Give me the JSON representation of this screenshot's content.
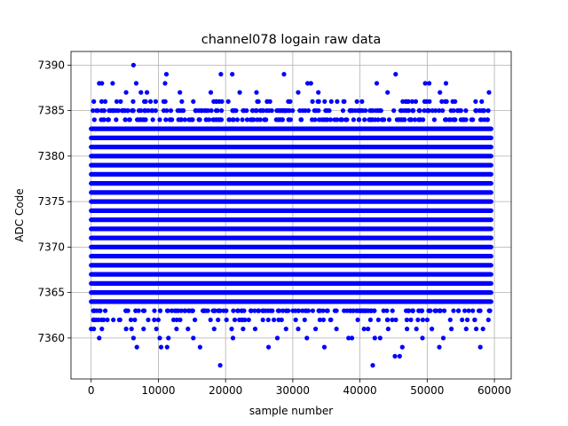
{
  "chart_data": {
    "type": "scatter",
    "title": "channel078 logain raw data",
    "xlabel": "sample number",
    "ylabel": "ADC Code",
    "xlim": [
      -3000,
      62500
    ],
    "ylim": [
      7355.5,
      7391.5
    ],
    "x_ticks": [
      0,
      10000,
      20000,
      30000,
      40000,
      50000,
      60000
    ],
    "y_ticks": [
      7360,
      7365,
      7370,
      7375,
      7380,
      7385,
      7390
    ],
    "grid": true,
    "marker_color": "#0000ff",
    "series": [
      {
        "x_range": [
          0,
          59500
        ],
        "dense_levels": [
          7364,
          7365,
          7366,
          7367,
          7368,
          7369,
          7370,
          7371,
          7372,
          7373,
          7374,
          7375,
          7376,
          7377,
          7378,
          7379,
          7380,
          7381,
          7382,
          7383
        ],
        "semi_dense_levels": [
          7363,
          7384,
          7385
        ],
        "sparse_points": [
          [
            400,
            7386
          ],
          [
            1200,
            7388
          ],
          [
            1600,
            7388
          ],
          [
            3200,
            7388
          ],
          [
            6300,
            7390
          ],
          [
            6700,
            7388
          ],
          [
            11200,
            7389
          ],
          [
            11000,
            7388
          ],
          [
            19300,
            7389
          ],
          [
            21000,
            7389
          ],
          [
            28700,
            7389
          ],
          [
            32200,
            7388
          ],
          [
            32700,
            7388
          ],
          [
            42500,
            7388
          ],
          [
            45300,
            7389
          ],
          [
            49700,
            7388
          ],
          [
            50300,
            7388
          ],
          [
            52800,
            7388
          ],
          [
            5200,
            7387
          ],
          [
            7400,
            7387
          ],
          [
            8300,
            7387
          ],
          [
            13200,
            7387
          ],
          [
            17800,
            7387
          ],
          [
            22100,
            7387
          ],
          [
            24600,
            7387
          ],
          [
            30800,
            7387
          ],
          [
            33800,
            7387
          ],
          [
            44100,
            7387
          ],
          [
            51900,
            7387
          ],
          [
            59200,
            7387
          ],
          [
            2100,
            7386
          ],
          [
            3800,
            7386
          ],
          [
            9600,
            7386
          ],
          [
            15200,
            7386
          ],
          [
            20400,
            7386
          ],
          [
            26200,
            7386
          ],
          [
            29600,
            7386
          ],
          [
            36600,
            7386
          ],
          [
            40300,
            7386
          ],
          [
            46800,
            7386
          ],
          [
            53800,
            7386
          ],
          [
            57200,
            7386
          ],
          [
            0,
            7361
          ],
          [
            400,
            7361
          ],
          [
            700,
            7362
          ],
          [
            1200,
            7360
          ],
          [
            1600,
            7361
          ],
          [
            2100,
            7363
          ],
          [
            3300,
            7362
          ],
          [
            4300,
            7362
          ],
          [
            5200,
            7361
          ],
          [
            6000,
            7361
          ],
          [
            6300,
            7360
          ],
          [
            6800,
            7359
          ],
          [
            7800,
            7361
          ],
          [
            9700,
            7361
          ],
          [
            10200,
            7360
          ],
          [
            10400,
            7359
          ],
          [
            11300,
            7359
          ],
          [
            11500,
            7360
          ],
          [
            12700,
            7361
          ],
          [
            14400,
            7361
          ],
          [
            15200,
            7360
          ],
          [
            16200,
            7359
          ],
          [
            18300,
            7361
          ],
          [
            19200,
            7357
          ],
          [
            20900,
            7361
          ],
          [
            21100,
            7360
          ],
          [
            22600,
            7361
          ],
          [
            24400,
            7361
          ],
          [
            26400,
            7359
          ],
          [
            27700,
            7360
          ],
          [
            29000,
            7361
          ],
          [
            30800,
            7361
          ],
          [
            32100,
            7360
          ],
          [
            33400,
            7361
          ],
          [
            34700,
            7359
          ],
          [
            36500,
            7361
          ],
          [
            38300,
            7360
          ],
          [
            38800,
            7360
          ],
          [
            40600,
            7361
          ],
          [
            41200,
            7361
          ],
          [
            41900,
            7357
          ],
          [
            42200,
            7360
          ],
          [
            43000,
            7360
          ],
          [
            44200,
            7361
          ],
          [
            45200,
            7358
          ],
          [
            45900,
            7358
          ],
          [
            46300,
            7359
          ],
          [
            47000,
            7361
          ],
          [
            48400,
            7361
          ],
          [
            49300,
            7360
          ],
          [
            50700,
            7361
          ],
          [
            51800,
            7359
          ],
          [
            52400,
            7360
          ],
          [
            53600,
            7361
          ],
          [
            55800,
            7361
          ],
          [
            57300,
            7361
          ],
          [
            57900,
            7359
          ],
          [
            58300,
            7361
          ],
          [
            59100,
            7362
          ]
        ]
      }
    ]
  }
}
